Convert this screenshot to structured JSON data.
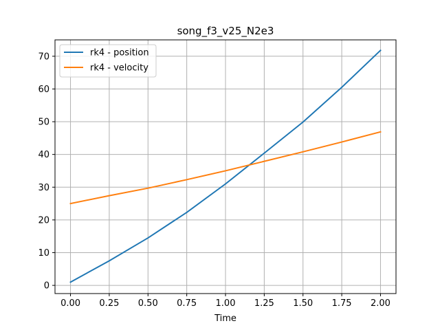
{
  "chart_data": {
    "type": "line",
    "title": "song_f3_v25_N2e3",
    "xlabel": "Time",
    "ylabel": "",
    "xlim": [
      -0.1,
      2.1
    ],
    "ylim": [
      -2.5,
      75
    ],
    "xticks": [
      0.0,
      0.25,
      0.5,
      0.75,
      1.0,
      1.25,
      1.5,
      1.75,
      2.0
    ],
    "xtick_labels": [
      "0.00",
      "0.25",
      "0.50",
      "0.75",
      "1.00",
      "1.25",
      "1.50",
      "1.75",
      "2.00"
    ],
    "yticks": [
      0,
      10,
      20,
      30,
      40,
      50,
      60,
      70
    ],
    "ytick_labels": [
      "0",
      "10",
      "20",
      "30",
      "40",
      "50",
      "60",
      "70"
    ],
    "grid": true,
    "legend_position": "top-left",
    "series": [
      {
        "name": "rk4 - position",
        "color": "#1f77b4",
        "x": [
          0.0,
          0.25,
          0.5,
          0.75,
          1.0,
          1.25,
          1.5,
          1.75,
          2.0
        ],
        "y": [
          1.0,
          7.5,
          14.5,
          22.3,
          31.0,
          40.4,
          49.9,
          60.5,
          71.8
        ]
      },
      {
        "name": "rk4 - velocity",
        "color": "#ff7f0e",
        "x": [
          0.0,
          0.25,
          0.5,
          0.75,
          1.0,
          1.25,
          1.5,
          1.75,
          2.0
        ],
        "y": [
          25.0,
          27.4,
          29.7,
          32.3,
          35.0,
          37.9,
          40.8,
          43.8,
          46.9
        ]
      }
    ]
  }
}
